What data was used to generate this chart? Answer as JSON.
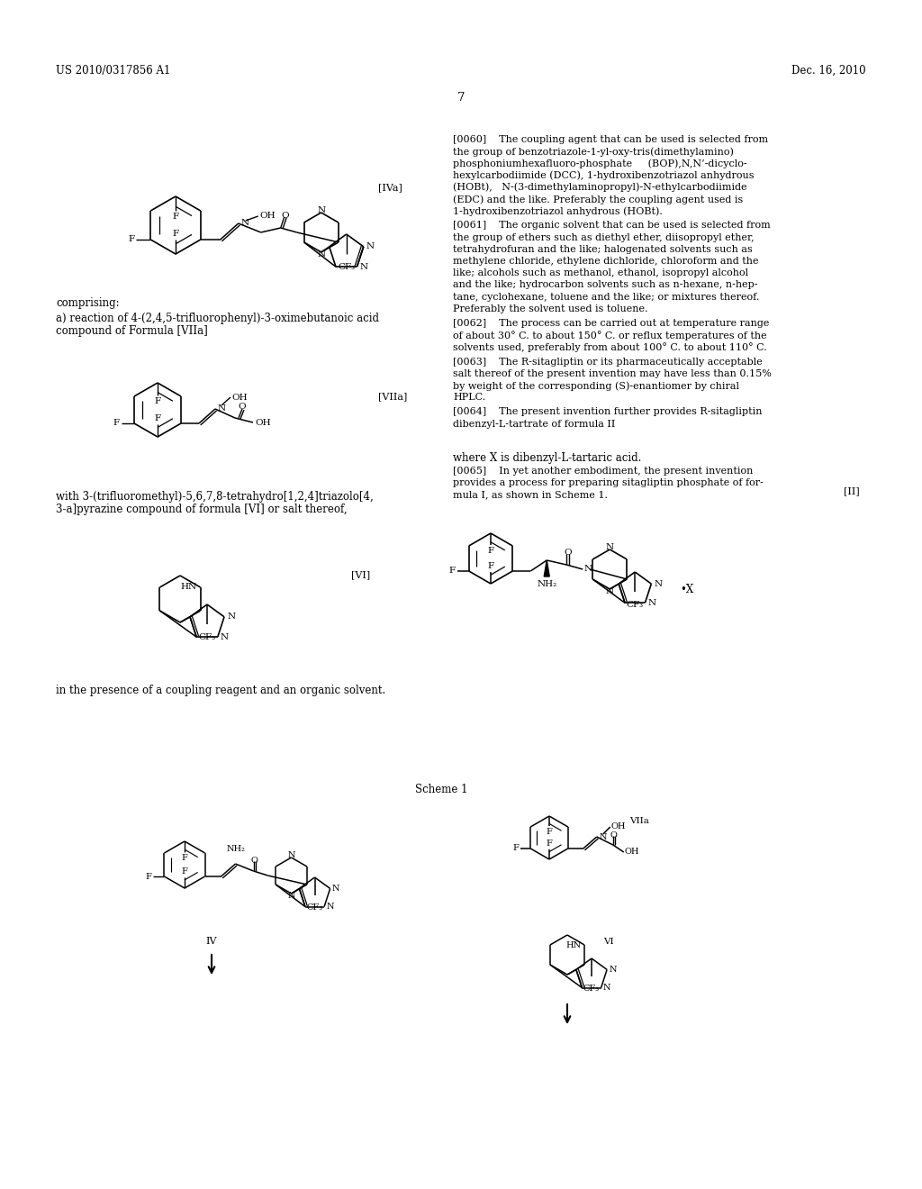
{
  "background": "#ffffff",
  "header_left": "US 2010/0317856 A1",
  "header_right": "Dec. 16, 2010",
  "page_num": "7",
  "para60": "[0060]    The coupling agent that can be used is selected from\nthe group of benzotriazole-1-yl-oxy-tris(dimethylamino)\nphosphoniumhexafluoro-phosphate     (BOP),N,N’-dicyclo-\nhexylcarbodiimide (DCC), 1-hydroxibenzotriazol anhydrous\n(HOBt),   N-(3-dimethylaminopropyl)-N-ethylcarbodiimide\n(EDC) and the like. Preferably the coupling agent used is\n1-hydroxibenzotriazol anhydrous (HOBt).",
  "para61": "[0061]    The organic solvent that can be used is selected from\nthe group of ethers such as diethyl ether, diisopropyl ether,\ntetrahydrofuran and the like; halogenated solvents such as\nmethylene chloride, ethylene dichloride, chloroform and the\nlike; alcohols such as methanol, ethanol, isopropyl alcohol\nand the like; hydrocarbon solvents such as n-hexane, n-hep-\ntane, cyclohexane, toluene and the like; or mixtures thereof.\nPreferably the solvent used is toluene.",
  "para62": "[0062]    The process can be carried out at temperature range\nof about 30° C. to about 150° C. or reflux temperatures of the\nsolvents used, preferably from about 100° C. to about 110° C.",
  "para63": "[0063]    The R-sitagliptin or its pharmaceutically acceptable\nsalt thereof of the present invention may have less than 0.15%\nby weight of the corresponding (S)-enantiomer by chiral\nHPLC.",
  "para64": "[0064]    The present invention further provides R-sitagliptin\ndibenzyl-L-tartrate of formula II",
  "para65": "[0065]    In yet another embodiment, the present invention\nprovides a process for preparing sitagliptin phosphate of for-\nmula I, as shown in Scheme 1.",
  "left1": "comprising:",
  "left2a": "a) reaction of 4-(2,4,5-trifluorophenyl)-3-oximebutanoic acid",
  "left2b": "compound of Formula [VIIa]",
  "left3a": "with 3-(trifluoromethyl)-5,6,7,8-tetrahydro[1,2,4]triazolo[4,",
  "left3b": "3-a]pyrazine compound of formula [VI] or salt thereof,",
  "left4": "in the presence of a coupling reagent and an organic solvent.",
  "where_x": "where X is dibenzyl-L-tartaric acid.",
  "scheme1": "Scheme 1"
}
